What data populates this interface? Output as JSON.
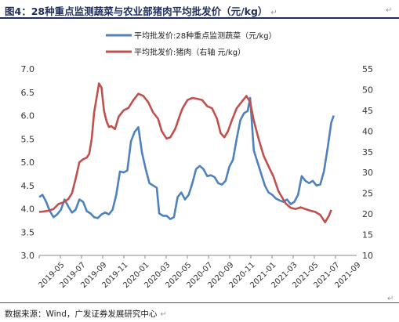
{
  "header": {
    "title": "图4：28种重点监测蔬菜与农业部猪肉平均批发价（元/kg）",
    "return_mark": "↵"
  },
  "footer": {
    "source": "数据来源：Wind，广发证券发展研究中心"
  },
  "chart_data": {
    "type": "line",
    "legend_position": "top-center",
    "grid": false,
    "x_ticks": [
      "2019-05",
      "2019-07",
      "2019-09",
      "2019-11",
      "2020-01",
      "2020-03",
      "2020-05",
      "2020-07",
      "2020-09",
      "2020-11",
      "2021-01",
      "2021-03",
      "2021-05",
      "2021-07",
      "2021-09"
    ],
    "y_left": {
      "ticks": [
        "7.0",
        "6.5",
        "6.0",
        "5.5",
        "5.0",
        "4.5",
        "4.0",
        "3.5",
        "3.0"
      ],
      "range": [
        3.0,
        7.0
      ]
    },
    "y_right": {
      "ticks": [
        "55",
        "50",
        "45",
        "40",
        "35",
        "30",
        "25",
        "20",
        "15",
        "10"
      ],
      "range": [
        10,
        55
      ]
    },
    "x_range": [
      2019.333,
      2021.917
    ],
    "series": [
      {
        "name": "平均批发价:28种重点监测蔬菜（元/kg）",
        "axis": "left",
        "color": "#4f81bd",
        "points": [
          [
            2019.333,
            4.25
          ],
          [
            2019.36,
            4.3
          ],
          [
            2019.39,
            4.15
          ],
          [
            2019.42,
            3.95
          ],
          [
            2019.45,
            3.82
          ],
          [
            2019.48,
            3.88
          ],
          [
            2019.51,
            3.98
          ],
          [
            2019.54,
            4.2
          ],
          [
            2019.57,
            4.05
          ],
          [
            2019.6,
            3.92
          ],
          [
            2019.63,
            3.98
          ],
          [
            2019.66,
            4.2
          ],
          [
            2019.69,
            4.15
          ],
          [
            2019.72,
            3.95
          ],
          [
            2019.75,
            3.9
          ],
          [
            2019.78,
            3.82
          ],
          [
            2019.81,
            3.8
          ],
          [
            2019.84,
            3.88
          ],
          [
            2019.87,
            3.92
          ],
          [
            2019.9,
            3.88
          ],
          [
            2019.93,
            3.98
          ],
          [
            2019.96,
            4.3
          ],
          [
            2019.99,
            4.8
          ],
          [
            2020.02,
            4.78
          ],
          [
            2020.05,
            4.82
          ],
          [
            2020.08,
            5.45
          ],
          [
            2020.11,
            5.65
          ],
          [
            2020.14,
            5.75
          ],
          [
            2020.17,
            5.2
          ],
          [
            2020.2,
            4.85
          ],
          [
            2020.23,
            4.55
          ],
          [
            2020.26,
            4.5
          ],
          [
            2020.29,
            4.45
          ],
          [
            2020.31,
            3.9
          ],
          [
            2020.34,
            3.85
          ],
          [
            2020.37,
            3.85
          ],
          [
            2020.4,
            3.78
          ],
          [
            2020.43,
            3.82
          ],
          [
            2020.46,
            4.25
          ],
          [
            2020.49,
            4.35
          ],
          [
            2020.52,
            4.2
          ],
          [
            2020.55,
            4.3
          ],
          [
            2020.58,
            4.55
          ],
          [
            2020.61,
            4.85
          ],
          [
            2020.64,
            4.92
          ],
          [
            2020.67,
            4.85
          ],
          [
            2020.7,
            4.7
          ],
          [
            2020.73,
            4.72
          ],
          [
            2020.76,
            4.68
          ],
          [
            2020.79,
            4.55
          ],
          [
            2020.82,
            4.52
          ],
          [
            2020.85,
            4.6
          ],
          [
            2020.88,
            4.9
          ],
          [
            2020.91,
            5.05
          ],
          [
            2020.94,
            5.5
          ],
          [
            2020.97,
            5.9
          ],
          [
            2021.0,
            6.05
          ],
          [
            2021.03,
            6.1
          ],
          [
            2021.05,
            6.38
          ],
          [
            2021.08,
            5.25
          ],
          [
            2021.11,
            5.0
          ],
          [
            2021.14,
            4.75
          ],
          [
            2021.17,
            4.5
          ],
          [
            2021.2,
            4.35
          ],
          [
            2021.23,
            4.3
          ],
          [
            2021.26,
            4.22
          ],
          [
            2021.29,
            4.18
          ],
          [
            2021.32,
            4.15
          ],
          [
            2021.35,
            4.2
          ],
          [
            2021.38,
            4.1
          ],
          [
            2021.41,
            4.15
          ],
          [
            2021.44,
            4.3
          ],
          [
            2021.47,
            4.7
          ],
          [
            2021.5,
            4.6
          ],
          [
            2021.53,
            4.55
          ],
          [
            2021.56,
            4.6
          ],
          [
            2021.59,
            4.5
          ],
          [
            2021.62,
            4.52
          ],
          [
            2021.65,
            4.8
          ],
          [
            2021.68,
            5.3
          ],
          [
            2021.71,
            5.85
          ],
          [
            2021.73,
            6.0
          ]
        ]
      },
      {
        "name": "平均批发价:猪肉（右轴 元/kg）",
        "axis": "right",
        "color": "#c0504d",
        "points": [
          [
            2019.333,
            20.5
          ],
          [
            2019.37,
            20.6
          ],
          [
            2019.41,
            20.8
          ],
          [
            2019.45,
            21.2
          ],
          [
            2019.49,
            22.4
          ],
          [
            2019.53,
            22.8
          ],
          [
            2019.57,
            23.6
          ],
          [
            2019.6,
            25.0
          ],
          [
            2019.63,
            28.5
          ],
          [
            2019.66,
            32.5
          ],
          [
            2019.69,
            33.2
          ],
          [
            2019.72,
            33.6
          ],
          [
            2019.74,
            34.5
          ],
          [
            2019.76,
            38.0
          ],
          [
            2019.78,
            44.5
          ],
          [
            2019.8,
            48.0
          ],
          [
            2019.82,
            51.5
          ],
          [
            2019.84,
            50.5
          ],
          [
            2019.86,
            45.0
          ],
          [
            2019.88,
            42.5
          ],
          [
            2019.9,
            41.0
          ],
          [
            2019.92,
            41.2
          ],
          [
            2019.95,
            40.5
          ],
          [
            2019.98,
            43.5
          ],
          [
            2020.02,
            45.0
          ],
          [
            2020.06,
            45.6
          ],
          [
            2020.1,
            47.5
          ],
          [
            2020.14,
            49.0
          ],
          [
            2020.18,
            48.5
          ],
          [
            2020.22,
            47.0
          ],
          [
            2020.26,
            44.5
          ],
          [
            2020.3,
            43.0
          ],
          [
            2020.33,
            40.0
          ],
          [
            2020.37,
            38.2
          ],
          [
            2020.4,
            38.5
          ],
          [
            2020.44,
            40.5
          ],
          [
            2020.48,
            44.0
          ],
          [
            2020.5,
            45.5
          ],
          [
            2020.54,
            47.5
          ],
          [
            2020.58,
            48.0
          ],
          [
            2020.62,
            47.8
          ],
          [
            2020.66,
            47.5
          ],
          [
            2020.7,
            46.0
          ],
          [
            2020.74,
            45.5
          ],
          [
            2020.78,
            43.0
          ],
          [
            2020.81,
            39.5
          ],
          [
            2020.84,
            38.5
          ],
          [
            2020.87,
            40.0
          ],
          [
            2020.9,
            42.5
          ],
          [
            2020.94,
            45.5
          ],
          [
            2020.98,
            47.0
          ],
          [
            2021.02,
            48.5
          ],
          [
            2021.05,
            47.0
          ],
          [
            2021.08,
            42.5
          ],
          [
            2021.12,
            38.0
          ],
          [
            2021.16,
            34.0
          ],
          [
            2021.2,
            31.5
          ],
          [
            2021.24,
            29.0
          ],
          [
            2021.28,
            25.5
          ],
          [
            2021.31,
            24.0
          ],
          [
            2021.34,
            22.5
          ],
          [
            2021.38,
            21.5
          ],
          [
            2021.42,
            21.2
          ],
          [
            2021.46,
            21.6
          ],
          [
            2021.5,
            21.2
          ],
          [
            2021.54,
            20.8
          ],
          [
            2021.58,
            20.5
          ],
          [
            2021.62,
            19.8
          ],
          [
            2021.66,
            18.0
          ],
          [
            2021.69,
            19.5
          ],
          [
            2021.71,
            21.0
          ]
        ]
      }
    ]
  }
}
